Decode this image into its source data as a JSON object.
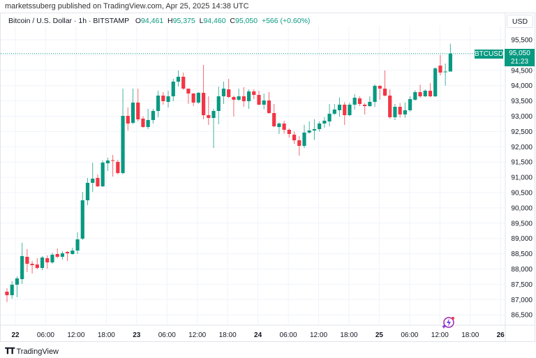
{
  "publisher_line": "marketssuberg published on TradingView.com, Apr 25, 2025 14:38 UTC",
  "legend": {
    "symbol": "Bitcoin / U.S. Dollar · 1h · BITSTAMP",
    "o_label": "O",
    "o": "94,461",
    "h_label": "H",
    "h": "95,375",
    "l_label": "L",
    "l": "94,460",
    "c_label": "C",
    "c": "95,050",
    "change": "+566 (+0.60%)"
  },
  "currency_button": "USD",
  "last_price": {
    "symbol": "BTCUSD",
    "price": "95,050",
    "countdown": "21:23",
    "value": 95050
  },
  "brand": "TradingView",
  "colors": {
    "up": "#089981",
    "down": "#f23645",
    "grid": "#f0f3fa"
  },
  "icons": {
    "alert": "lightning-alert-icon",
    "logo": "tradingview-logo-icon"
  },
  "chart_data": {
    "type": "candlestick",
    "interval": "1h",
    "ylim": [
      86250,
      95750
    ],
    "y_ticks": [
      86500,
      87000,
      87500,
      88000,
      88500,
      89000,
      89500,
      90000,
      90500,
      91000,
      91500,
      92000,
      92500,
      93000,
      93500,
      94000,
      94500,
      95000,
      95500
    ],
    "y_tick_labels": [
      "86,500",
      "87,000",
      "87,500",
      "88,000",
      "88,500",
      "89,000",
      "89,500",
      "90,000",
      "90,500",
      "91,000",
      "91,500",
      "92,000",
      "92,500",
      "93,000",
      "93,500",
      "94,000",
      "94,500",
      "95,000",
      "95,500"
    ],
    "x_tick_labels": [
      "22",
      "06:00",
      "12:00",
      "18:00",
      "23",
      "06:00",
      "12:00",
      "18:00",
      "24",
      "06:00",
      "12:00",
      "18:00",
      "25",
      "06:00",
      "12:00",
      "18:00",
      "26"
    ],
    "x_tick_bold": [
      true,
      false,
      false,
      false,
      true,
      false,
      false,
      false,
      true,
      false,
      false,
      false,
      true,
      false,
      false,
      false,
      true
    ],
    "grid": true,
    "ohlc": [
      [
        87259,
        87373,
        86916,
        87144
      ],
      [
        87144,
        87601,
        87030,
        87487
      ],
      [
        87487,
        87760,
        87076,
        87692
      ],
      [
        87669,
        88857,
        87510,
        88423
      ],
      [
        88400,
        88651,
        87898,
        88172
      ],
      [
        88172,
        88263,
        87852,
        88126
      ],
      [
        88149,
        88354,
        87989,
        88035
      ],
      [
        88035,
        88423,
        87966,
        88377
      ],
      [
        88354,
        88446,
        88012,
        88217
      ],
      [
        88217,
        88537,
        88172,
        88469
      ],
      [
        88491,
        88674,
        88354,
        88400
      ],
      [
        88400,
        88583,
        88309,
        88514
      ],
      [
        88560,
        88583,
        88263,
        88514
      ],
      [
        88491,
        88697,
        88469,
        88605
      ],
      [
        88605,
        89199,
        88491,
        88971
      ],
      [
        88994,
        90523,
        88950,
        90249
      ],
      [
        90249,
        90980,
        90089,
        90820
      ],
      [
        90820,
        91482,
        90523,
        90957
      ],
      [
        90980,
        91094,
        90683,
        90706
      ],
      [
        90706,
        91550,
        90683,
        91482
      ],
      [
        91459,
        91642,
        91208,
        91550
      ],
      [
        91560,
        91733,
        91025,
        91540
      ],
      [
        91505,
        91573,
        91094,
        91140
      ],
      [
        91140,
        93902,
        91094,
        93011
      ],
      [
        93011,
        93286,
        92532,
        92760
      ],
      [
        92783,
        93902,
        92737,
        93445
      ],
      [
        93445,
        93902,
        92830,
        92897
      ],
      [
        92920,
        93000,
        92623,
        92646
      ],
      [
        92646,
        93240,
        92578,
        92875
      ],
      [
        92875,
        93240,
        92760,
        93171
      ],
      [
        93171,
        93833,
        92966,
        93674
      ],
      [
        93674,
        93790,
        93377,
        93491
      ],
      [
        93468,
        93833,
        93286,
        93651
      ],
      [
        93651,
        94222,
        93491,
        94130
      ],
      [
        94130,
        94495,
        93970,
        94290
      ],
      [
        94290,
        94427,
        93860,
        93902
      ],
      [
        93902,
        93900,
        93400,
        93742
      ],
      [
        93742,
        93760,
        93331,
        93445
      ],
      [
        93445,
        93788,
        93400,
        93765
      ],
      [
        93765,
        94678,
        92897,
        93034
      ],
      [
        93034,
        93651,
        92715,
        92943
      ],
      [
        92943,
        93240,
        91961,
        93171
      ],
      [
        93171,
        93970,
        92737,
        93651
      ],
      [
        93651,
        94130,
        93400,
        93902
      ],
      [
        93879,
        94222,
        93600,
        93628
      ],
      [
        93628,
        93674,
        92989,
        93537
      ],
      [
        93537,
        93902,
        93500,
        93651
      ],
      [
        93651,
        93950,
        93308,
        93491
      ],
      [
        93491,
        93880,
        93240,
        93811
      ],
      [
        93811,
        93880,
        93560,
        93696
      ],
      [
        93696,
        93833,
        93360,
        93377
      ],
      [
        93377,
        93740,
        93230,
        93514
      ],
      [
        93514,
        93790,
        93080,
        93103
      ],
      [
        93103,
        93400,
        92640,
        92669
      ],
      [
        92646,
        92800,
        92418,
        92760
      ],
      [
        92760,
        92850,
        92430,
        92555
      ],
      [
        92555,
        92600,
        92300,
        92418
      ],
      [
        92395,
        92500,
        92090,
        92212
      ],
      [
        92212,
        92349,
        91710,
        92030
      ],
      [
        92030,
        92720,
        91960,
        92464
      ],
      [
        92464,
        92830,
        92430,
        92532
      ],
      [
        92532,
        92900,
        92220,
        92578
      ],
      [
        92578,
        92830,
        92500,
        92760
      ],
      [
        92760,
        92966,
        92623,
        92852
      ],
      [
        92829,
        93400,
        92669,
        93080
      ],
      [
        93080,
        93400,
        93034,
        93217
      ],
      [
        93194,
        93610,
        92980,
        93377
      ],
      [
        93377,
        93460,
        92715,
        93034
      ],
      [
        93034,
        93445,
        93000,
        93377
      ],
      [
        93377,
        93719,
        93217,
        93605
      ],
      [
        93582,
        93650,
        93330,
        93400
      ],
      [
        93377,
        93430,
        93057,
        93330
      ],
      [
        93330,
        93650,
        93300,
        93468
      ],
      [
        93468,
        94040,
        93300,
        93993
      ],
      [
        93993,
        94016,
        93537,
        93902
      ],
      [
        93902,
        94495,
        93650,
        93674
      ],
      [
        93674,
        93879,
        92920,
        92966
      ],
      [
        92966,
        93400,
        92875,
        93308
      ],
      [
        93308,
        93430,
        92950,
        93057
      ],
      [
        93057,
        93450,
        92950,
        93194
      ],
      [
        93194,
        93651,
        93150,
        93560
      ],
      [
        93537,
        93850,
        93510,
        93788
      ],
      [
        93788,
        94030,
        93600,
        93651
      ],
      [
        93651,
        93880,
        93630,
        93833
      ],
      [
        93833,
        94080,
        93620,
        93651
      ],
      [
        93651,
        94600,
        93630,
        94564
      ],
      [
        94655,
        95000,
        94336,
        94427
      ],
      [
        94450,
        94724,
        94000,
        94461
      ],
      [
        94461,
        95375,
        94460,
        95050
      ]
    ]
  }
}
